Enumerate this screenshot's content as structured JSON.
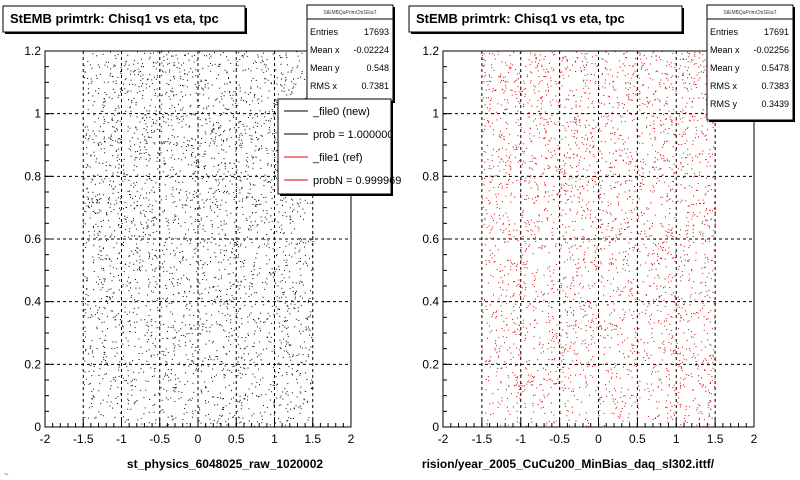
{
  "footer": {
    "text": "~"
  },
  "chart_data": [
    {
      "type": "scatter",
      "title": "StEMB primtrk: Chisq1 vs eta, tpc",
      "xlabel": "st_physics_6048025_raw_1020002",
      "ylabel": "",
      "xlim": [
        -2,
        2
      ],
      "ylim": [
        0,
        1.2
      ],
      "x_ticks": [
        "-2",
        "-1.5",
        "-1",
        "-0.5",
        "0",
        "0.5",
        "1",
        "1.5",
        "2"
      ],
      "y_ticks": [
        "0",
        "0.2",
        "0.4",
        "0.6",
        "0.8",
        "1",
        "1.2"
      ],
      "grid": true,
      "marker_color": "#000000",
      "distribution": {
        "x_range": [
          -1.5,
          1.5
        ],
        "y_range": [
          0,
          1.2
        ],
        "point_count": 3200
      },
      "stats": {
        "header": "StEMBQaPrimChi1EtaT",
        "rows": [
          {
            "label": "Entries",
            "value": "17693"
          },
          {
            "label": "Mean x",
            "value": "-0.02224"
          },
          {
            "label": "Mean y",
            "value": "0.548"
          },
          {
            "label": "RMS x",
            "value": "0.7381"
          }
        ]
      },
      "legend": {
        "placement": "top-right",
        "entries": [
          {
            "label": "_file0 (new)",
            "color": "#000000"
          },
          {
            "label": "prob = 1.000000",
            "color": "#000000"
          },
          {
            "label": "_file1 (ref)",
            "color": "#d40000"
          },
          {
            "label": "probN = 0.999969",
            "color": "#d40000"
          }
        ]
      }
    },
    {
      "type": "scatter",
      "title": "StEMB primtrk: Chisq1 vs eta, tpc",
      "xlabel": "rision/year_2005_CuCu200_MinBias_daq_sl302.ittf/",
      "ylabel": "",
      "xlim": [
        -2,
        2
      ],
      "ylim": [
        0,
        1.2
      ],
      "x_ticks": [
        "-2",
        "-1.5",
        "-1",
        "-0.5",
        "0",
        "0.5",
        "1",
        "1.5",
        "2"
      ],
      "y_ticks": [
        "0",
        "0.2",
        "0.4",
        "0.6",
        "0.8",
        "1",
        "1.2"
      ],
      "grid": true,
      "marker_color": "#d40000",
      "distribution": {
        "x_range": [
          -1.5,
          1.5
        ],
        "y_range": [
          0,
          1.2
        ],
        "point_count": 3200
      },
      "stats": {
        "header": "StEMBQaPrimChi1EtaT",
        "rows": [
          {
            "label": "Entries",
            "value": "17691"
          },
          {
            "label": "Mean x",
            "value": "-0.02256"
          },
          {
            "label": "Mean y",
            "value": "0.5478"
          },
          {
            "label": "RMS x",
            "value": "0.7383"
          },
          {
            "label": "RMS y",
            "value": "0.3439"
          }
        ]
      }
    }
  ]
}
